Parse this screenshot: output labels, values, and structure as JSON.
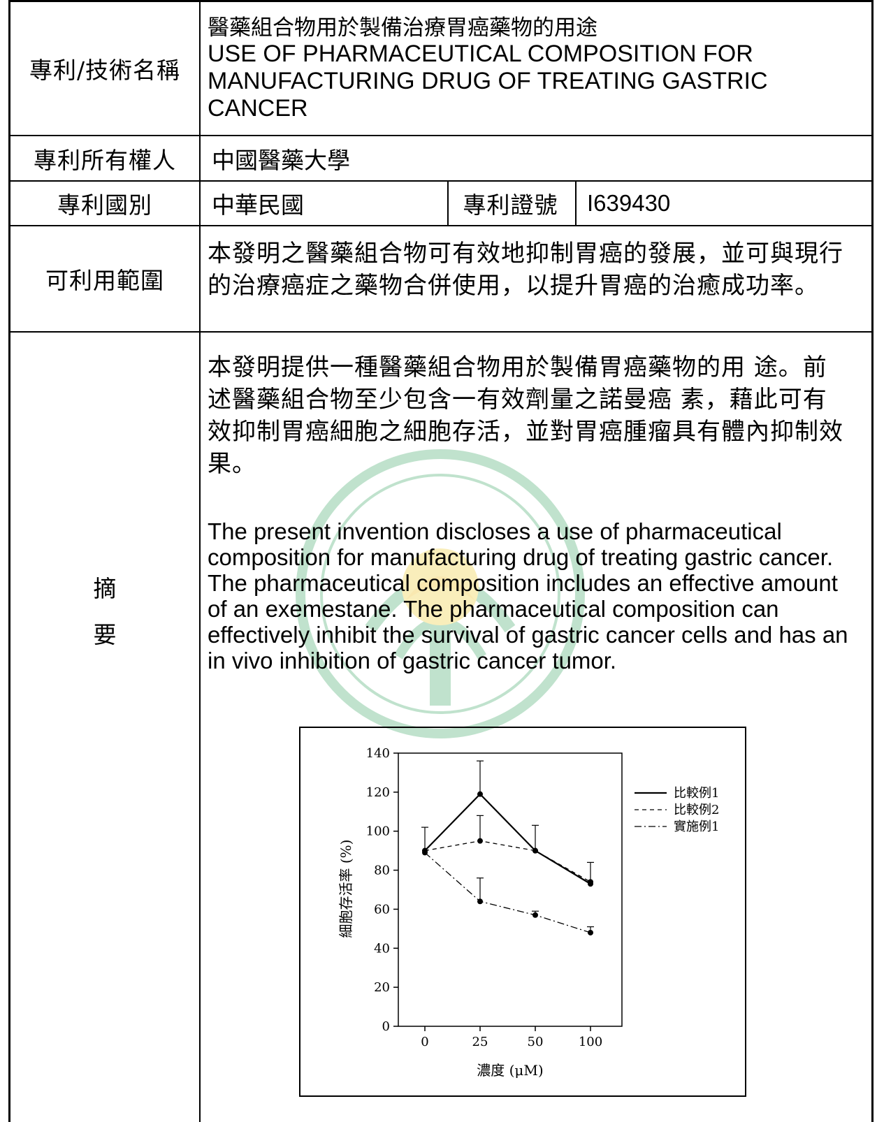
{
  "rows": {
    "name": {
      "label": "專利/技術名稱",
      "title_zh": "醫藥組合物用於製備治療胃癌藥物的用途",
      "title_en": "USE OF PHARMACEUTICAL COMPOSITION FOR MANUFACTURING DRUG OF TREATING GASTRIC CANCER"
    },
    "owner": {
      "label": "專利所有權人",
      "value": "中國醫藥大學"
    },
    "country": {
      "label": "專利國別",
      "value": "中華民國",
      "cert_label": "專利證號",
      "cert_value": "I639430"
    },
    "scope": {
      "label": "可利用範圍",
      "value": "本發明之醫藥組合物可有效地抑制胃癌的發展，並可與現行的治療癌症之藥物合併使用，以提升胃癌的治癒成功率。"
    },
    "abstract": {
      "label_1": "摘",
      "label_2": "要",
      "text_zh": "本發明提供一種醫藥組合物用於製備胃癌藥物的用 途。前述醫藥組合物至少包含一有效劑量之諾曼癌 素，藉此可有效抑制胃癌細胞之細胞存活，並對胃癌腫瘤具有體內抑制效果。",
      "text_en": "The present invention discloses a use of pharmaceutical composition for manufacturing drug of treating gastric cancer. The pharmaceutical composition includes an effective amount of an exemestane. The pharmaceutical composition can effectively inhibit the survival of gastric cancer cells and has an in vivo inhibition of gastric cancer tumor."
    }
  },
  "chart_data": {
    "type": "line",
    "x": [
      0,
      25,
      50,
      100
    ],
    "xlabel": "濃度 (μM)",
    "ylabel": "細胞存活率 (%)",
    "ylim": [
      0,
      140
    ],
    "yticks": [
      0,
      20,
      40,
      60,
      80,
      100,
      120,
      140
    ],
    "xticks": [
      "0",
      "25",
      "50",
      "100"
    ],
    "legend_position": "right",
    "series": [
      {
        "name": "比較例1",
        "style": "solid",
        "values": [
          90,
          119,
          90,
          73
        ],
        "errors": [
          12,
          17,
          13,
          11
        ]
      },
      {
        "name": "比較例2",
        "style": "dashed",
        "values": [
          90,
          95,
          90,
          74
        ],
        "errors": [
          0,
          13,
          0,
          0
        ]
      },
      {
        "name": "實施例1",
        "style": "dashdot",
        "values": [
          89,
          64,
          57,
          48
        ],
        "errors": [
          0,
          12,
          2,
          3
        ]
      }
    ]
  }
}
